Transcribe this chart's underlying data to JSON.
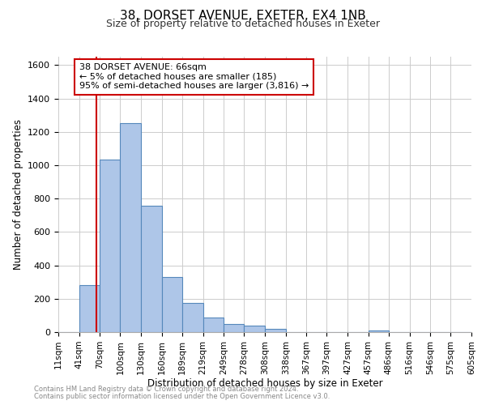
{
  "title_line1": "38, DORSET AVENUE, EXETER, EX4 1NB",
  "title_line2": "Size of property relative to detached houses in Exeter",
  "xlabel": "Distribution of detached houses by size in Exeter",
  "ylabel": "Number of detached properties",
  "bin_labels": [
    "11sqm",
    "41sqm",
    "70sqm",
    "100sqm",
    "130sqm",
    "160sqm",
    "189sqm",
    "219sqm",
    "249sqm",
    "278sqm",
    "308sqm",
    "338sqm",
    "367sqm",
    "397sqm",
    "427sqm",
    "457sqm",
    "486sqm",
    "516sqm",
    "546sqm",
    "575sqm",
    "605sqm"
  ],
  "bar_values": [
    0,
    280,
    1035,
    1250,
    755,
    330,
    175,
    85,
    50,
    38,
    20,
    0,
    0,
    0,
    0,
    10,
    0,
    0,
    0,
    0
  ],
  "bar_color": "#aec6e8",
  "bar_edge_color": "#5588bb",
  "ylim": [
    0,
    1650
  ],
  "yticks": [
    0,
    200,
    400,
    600,
    800,
    1000,
    1200,
    1400,
    1600
  ],
  "property_line_x": 66,
  "property_line_color": "#cc0000",
  "annotation_title": "38 DORSET AVENUE: 66sqm",
  "annotation_line1": "← 5% of detached houses are smaller (185)",
  "annotation_line2": "95% of semi-detached houses are larger (3,816) →",
  "annotation_box_color": "#ffffff",
  "annotation_box_edge": "#cc0000",
  "footnote1": "Contains HM Land Registry data © Crown copyright and database right 2024.",
  "footnote2": "Contains public sector information licensed under the Open Government Licence v3.0.",
  "bin_edges": [
    11,
    41,
    70,
    100,
    130,
    160,
    189,
    219,
    249,
    278,
    308,
    338,
    367,
    397,
    427,
    457,
    486,
    516,
    546,
    575,
    605
  ]
}
